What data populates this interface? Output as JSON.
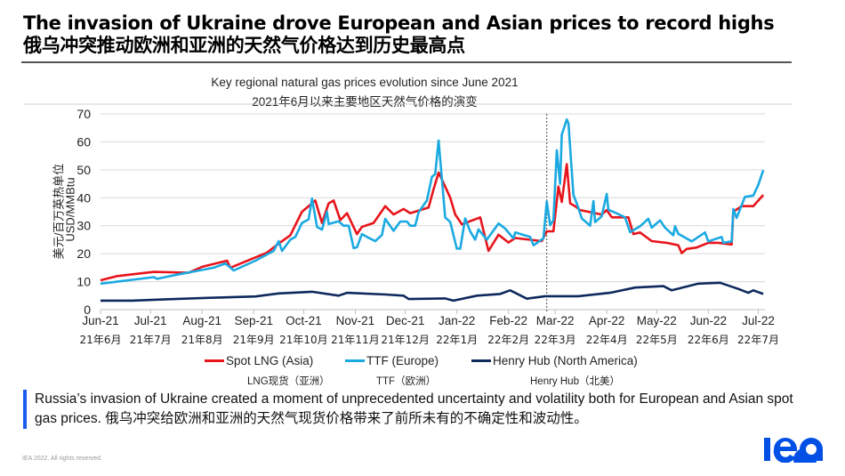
{
  "header": {
    "title_en": "The invasion of Ukraine drove European and Asian prices to record highs",
    "title_cn": "俄乌冲突推动欧洲和亚洲的天然气价格达到历史最高点"
  },
  "chart_data": {
    "type": "line",
    "title": "Key regional natural gas prices evolution since June 2021",
    "subtitle": "2021年6月以来主要地区天然气价格的演变",
    "ylabel": "美元/百万英热单位",
    "ylabel_en": "USD/MMBtu",
    "ylim": [
      0,
      70
    ],
    "yticks": [
      0,
      10,
      20,
      30,
      40,
      50,
      60,
      70
    ],
    "xlim": [
      "2021-06-01",
      "2022-07-05"
    ],
    "grid": true,
    "legend_position": "bottom",
    "marker_line": {
      "date": "2022-02-24",
      "style": "dashed"
    },
    "xticks": [
      {
        "date": "2021-06-01",
        "label": "Jun-21",
        "label_cn": "21年6月"
      },
      {
        "date": "2021-07-01",
        "label": "Jul-21",
        "label_cn": "21年7月"
      },
      {
        "date": "2021-08-01",
        "label": "Aug-21",
        "label_cn": "21年8月"
      },
      {
        "date": "2021-09-01",
        "label": "Sep-21",
        "label_cn": "21年9月"
      },
      {
        "date": "2021-10-01",
        "label": "Oct-21",
        "label_cn": "21年10月"
      },
      {
        "date": "2021-11-01",
        "label": "Nov-21",
        "label_cn": "21年11月"
      },
      {
        "date": "2021-12-01",
        "label": "Dec-21",
        "label_cn": "21年12月"
      },
      {
        "date": "2022-01-01",
        "label": "Jan-22",
        "label_cn": "22年1月"
      },
      {
        "date": "2022-02-01",
        "label": "Feb-22",
        "label_cn": "22年2月"
      },
      {
        "date": "2022-03-01",
        "label": "Mar-22",
        "label_cn": "22年3月"
      },
      {
        "date": "2022-04-01",
        "label": "Apr-22",
        "label_cn": "22年4月"
      },
      {
        "date": "2022-05-01",
        "label": "May-22",
        "label_cn": "22年5月"
      },
      {
        "date": "2022-06-01",
        "label": "Jun-22",
        "label_cn": "22年6月"
      },
      {
        "date": "2022-07-01",
        "label": "Jul-22",
        "label_cn": "22年7月"
      }
    ],
    "series": [
      {
        "name": "Spot LNG (Asia)",
        "name_cn": "LNG现货（亚洲）",
        "color": "#e8141c",
        "points": [
          [
            "2021-06-01",
            10.5
          ],
          [
            "2021-06-11",
            12
          ],
          [
            "2021-07-03",
            13.5
          ],
          [
            "2021-07-24",
            13.2
          ],
          [
            "2021-08-01",
            15.3
          ],
          [
            "2021-08-16",
            17.5
          ],
          [
            "2021-08-18",
            15
          ],
          [
            "2021-09-09",
            20.4
          ],
          [
            "2021-09-16",
            23.6
          ],
          [
            "2021-09-23",
            26.6
          ],
          [
            "2021-09-30",
            35
          ],
          [
            "2021-10-08",
            39
          ],
          [
            "2021-10-12",
            31
          ],
          [
            "2021-10-16",
            38
          ],
          [
            "2021-10-19",
            39
          ],
          [
            "2021-10-23",
            32
          ],
          [
            "2021-10-27",
            34.5
          ],
          [
            "2021-11-02",
            27
          ],
          [
            "2021-11-05",
            29.6
          ],
          [
            "2021-11-12",
            31
          ],
          [
            "2021-11-19",
            37
          ],
          [
            "2021-11-24",
            34
          ],
          [
            "2021-11-30",
            36
          ],
          [
            "2021-12-04",
            34.5
          ],
          [
            "2021-12-15",
            36.5
          ],
          [
            "2021-12-18",
            43
          ],
          [
            "2021-12-21",
            49
          ],
          [
            "2021-12-25",
            44
          ],
          [
            "2021-12-28",
            40
          ],
          [
            "2021-12-31",
            34
          ],
          [
            "2022-01-04",
            30.5
          ],
          [
            "2022-01-15",
            33
          ],
          [
            "2022-01-20",
            21
          ],
          [
            "2022-01-26",
            26.8
          ],
          [
            "2022-02-01",
            24
          ],
          [
            "2022-02-05",
            25.6
          ],
          [
            "2022-02-21",
            24.5
          ],
          [
            "2022-02-24",
            28
          ],
          [
            "2022-02-28",
            28
          ],
          [
            "2022-03-03",
            44
          ],
          [
            "2022-03-05",
            38.5
          ],
          [
            "2022-03-08",
            52
          ],
          [
            "2022-03-10",
            38
          ],
          [
            "2022-03-13",
            37
          ],
          [
            "2022-03-16",
            35.6
          ],
          [
            "2022-03-29",
            34
          ],
          [
            "2022-04-01",
            35.6
          ],
          [
            "2022-04-04",
            33
          ],
          [
            "2022-04-14",
            33
          ],
          [
            "2022-04-17",
            27
          ],
          [
            "2022-04-21",
            27.6
          ],
          [
            "2022-04-28",
            24.5
          ],
          [
            "2022-05-07",
            23.9
          ],
          [
            "2022-05-14",
            23
          ],
          [
            "2022-05-16",
            20.2
          ],
          [
            "2022-05-19",
            21.7
          ],
          [
            "2022-05-25",
            22.2
          ],
          [
            "2022-06-01",
            23.9
          ],
          [
            "2022-06-07",
            23.9
          ],
          [
            "2022-06-15",
            23.3
          ],
          [
            "2022-06-16",
            35
          ],
          [
            "2022-06-21",
            37
          ],
          [
            "2022-06-28",
            37
          ],
          [
            "2022-07-04",
            41
          ]
        ]
      },
      {
        "name": "TTF (Europe)",
        "name_cn": "TTF（欧洲）",
        "color": "#1ba9e1",
        "points": [
          [
            "2021-06-01",
            9.3
          ],
          [
            "2021-06-11",
            10
          ],
          [
            "2021-07-03",
            11.6
          ],
          [
            "2021-07-05",
            11
          ],
          [
            "2021-07-17",
            12.5
          ],
          [
            "2021-08-08",
            15
          ],
          [
            "2021-08-15",
            16.5
          ],
          [
            "2021-08-20",
            14
          ],
          [
            "2021-09-02",
            17.5
          ],
          [
            "2021-09-13",
            21
          ],
          [
            "2021-09-16",
            24.5
          ],
          [
            "2021-09-18",
            21
          ],
          [
            "2021-09-23",
            25
          ],
          [
            "2021-09-26",
            26
          ],
          [
            "2021-09-30",
            31
          ],
          [
            "2021-10-04",
            32.3
          ],
          [
            "2021-10-06",
            39.7
          ],
          [
            "2021-10-09",
            29.6
          ],
          [
            "2021-10-12",
            28.6
          ],
          [
            "2021-10-15",
            35
          ],
          [
            "2021-10-16",
            30.6
          ],
          [
            "2021-10-22",
            31.6
          ],
          [
            "2021-10-25",
            30
          ],
          [
            "2021-10-28",
            30
          ],
          [
            "2021-10-31",
            22
          ],
          [
            "2021-11-02",
            22.3
          ],
          [
            "2021-11-05",
            27
          ],
          [
            "2021-11-08",
            26
          ],
          [
            "2021-11-13",
            24.5
          ],
          [
            "2021-11-17",
            26.7
          ],
          [
            "2021-11-19",
            32.5
          ],
          [
            "2021-11-24",
            28.2
          ],
          [
            "2021-11-28",
            31.5
          ],
          [
            "2021-12-02",
            31.5
          ],
          [
            "2021-12-04",
            30
          ],
          [
            "2021-12-07",
            30
          ],
          [
            "2021-12-09",
            34.8
          ],
          [
            "2021-12-14",
            39
          ],
          [
            "2021-12-17",
            47.5
          ],
          [
            "2021-12-19",
            48.5
          ],
          [
            "2021-12-21",
            60.5
          ],
          [
            "2021-12-25",
            33
          ],
          [
            "2021-12-28",
            31.3
          ],
          [
            "2022-01-01",
            21.8
          ],
          [
            "2022-01-03",
            21.8
          ],
          [
            "2022-01-06",
            32.6
          ],
          [
            "2022-01-09",
            28
          ],
          [
            "2022-01-12",
            25
          ],
          [
            "2022-01-14",
            28.7
          ],
          [
            "2022-01-19",
            25
          ],
          [
            "2022-01-26",
            30.8
          ],
          [
            "2022-01-30",
            29
          ],
          [
            "2022-02-04",
            25.5
          ],
          [
            "2022-02-05",
            27.6
          ],
          [
            "2022-02-14",
            26
          ],
          [
            "2022-02-16",
            23
          ],
          [
            "2022-02-22",
            25.5
          ],
          [
            "2022-02-24",
            38.7
          ],
          [
            "2022-02-26",
            30.2
          ],
          [
            "2022-02-28",
            32
          ],
          [
            "2022-03-02",
            57
          ],
          [
            "2022-03-04",
            45
          ],
          [
            "2022-03-05",
            62.6
          ],
          [
            "2022-03-08",
            68
          ],
          [
            "2022-03-09",
            66.6
          ],
          [
            "2022-03-12",
            41
          ],
          [
            "2022-03-14",
            38
          ],
          [
            "2022-03-17",
            32.6
          ],
          [
            "2022-03-22",
            30
          ],
          [
            "2022-03-24",
            38.8
          ],
          [
            "2022-03-25",
            31.3
          ],
          [
            "2022-03-29",
            33.4
          ],
          [
            "2022-04-01",
            41.4
          ],
          [
            "2022-04-02",
            35.7
          ],
          [
            "2022-04-06",
            34.7
          ],
          [
            "2022-04-12",
            33
          ],
          [
            "2022-04-15",
            27.7
          ],
          [
            "2022-04-21",
            29.8
          ],
          [
            "2022-04-26",
            32.5
          ],
          [
            "2022-04-28",
            29.3
          ],
          [
            "2022-05-03",
            31.9
          ],
          [
            "2022-05-06",
            29.3
          ],
          [
            "2022-05-11",
            26.6
          ],
          [
            "2022-05-12",
            29.8
          ],
          [
            "2022-05-14",
            27.1
          ],
          [
            "2022-05-22",
            24.4
          ],
          [
            "2022-05-30",
            27.6
          ],
          [
            "2022-06-01",
            24.4
          ],
          [
            "2022-06-09",
            26
          ],
          [
            "2022-06-10",
            23.9
          ],
          [
            "2022-06-15",
            24.4
          ],
          [
            "2022-06-16",
            36
          ],
          [
            "2022-06-18",
            32.8
          ],
          [
            "2022-06-23",
            40.3
          ],
          [
            "2022-06-28",
            40.8
          ],
          [
            "2022-07-01",
            44.6
          ],
          [
            "2022-07-04",
            49.9
          ]
        ]
      },
      {
        "name": "Henry Hub (North America)",
        "name_cn": "Henry Hub（北美）",
        "color": "#0e2a5c",
        "points": [
          [
            "2021-06-01",
            3.2
          ],
          [
            "2021-06-20",
            3.2
          ],
          [
            "2021-07-10",
            3.7
          ],
          [
            "2021-08-04",
            4.2
          ],
          [
            "2021-09-02",
            4.7
          ],
          [
            "2021-09-16",
            5.8
          ],
          [
            "2021-10-06",
            6.4
          ],
          [
            "2021-10-22",
            5.0
          ],
          [
            "2021-10-27",
            6
          ],
          [
            "2021-11-19",
            5.4
          ],
          [
            "2021-11-30",
            5
          ],
          [
            "2021-12-03",
            3.8
          ],
          [
            "2021-12-25",
            4.0
          ],
          [
            "2021-12-30",
            3.2
          ],
          [
            "2022-01-13",
            5.0
          ],
          [
            "2022-01-27",
            5.6
          ],
          [
            "2022-02-02",
            6.9
          ],
          [
            "2022-02-12",
            3.9
          ],
          [
            "2022-02-23",
            4.8
          ],
          [
            "2022-03-15",
            4.8
          ],
          [
            "2022-04-03",
            6
          ],
          [
            "2022-04-18",
            7.9
          ],
          [
            "2022-05-05",
            8.4
          ],
          [
            "2022-05-10",
            6.9
          ],
          [
            "2022-05-26",
            9.3
          ],
          [
            "2022-06-08",
            9.6
          ],
          [
            "2022-06-19",
            7.4
          ],
          [
            "2022-06-25",
            6
          ],
          [
            "2022-06-28",
            6.9
          ],
          [
            "2022-07-04",
            5.6
          ]
        ]
      }
    ]
  },
  "note": "Russia’s invasion of Ukraine created a moment of unprecedented uncertainty and volatility both for European and Asian spot gas prices. 俄乌冲突给欧洲和亚洲的天然气现货价格带来了前所未有的不确定性和波动性。",
  "footer": {
    "copyright": "IEA 2022. All rights reserved.",
    "logo_text": "iea",
    "logo_color": "#0050e6"
  }
}
